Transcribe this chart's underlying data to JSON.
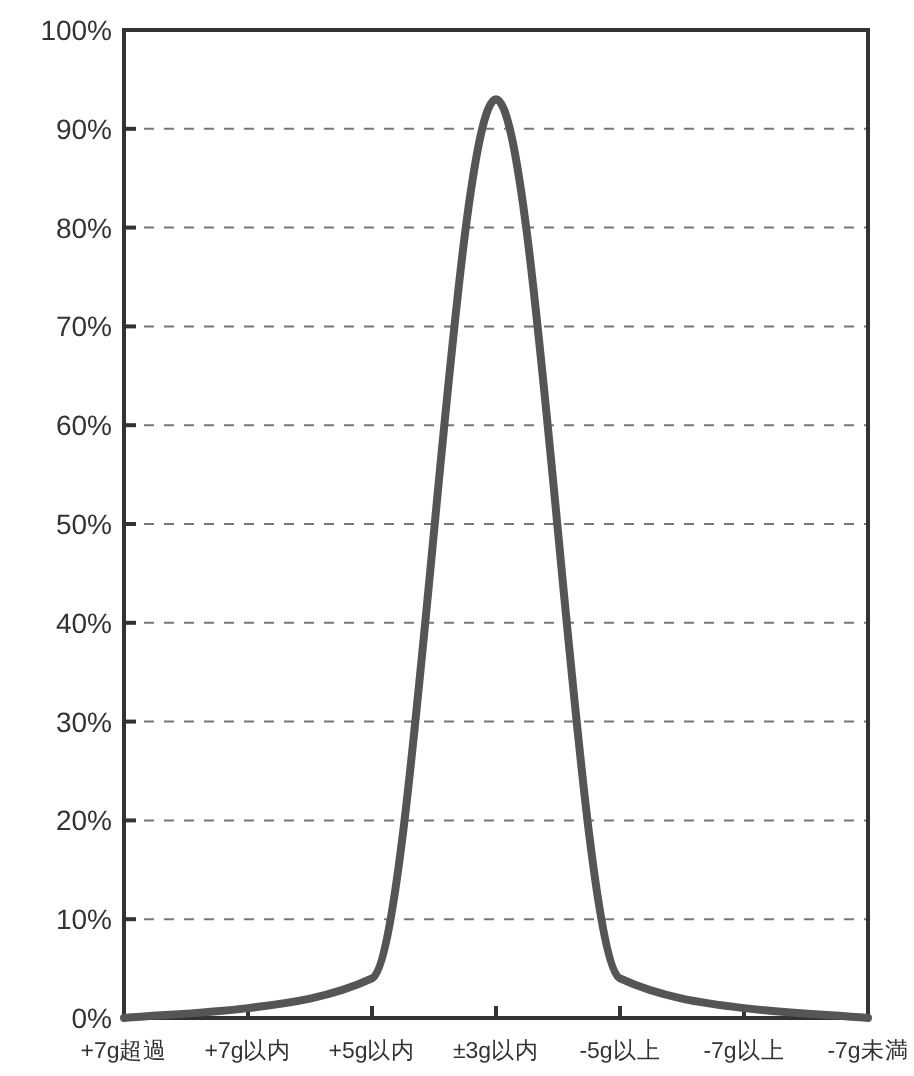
{
  "chart_data": {
    "type": "line",
    "categories": [
      "+7g超過",
      "+7g以内",
      "+5g以内",
      "±3g以内",
      "-5g以上",
      "-7g以上",
      "-7g未満"
    ],
    "values": [
      0,
      1,
      4,
      93,
      4,
      1,
      0
    ],
    "color": "#555555",
    "ylim": [
      0,
      100
    ],
    "yticks": [
      {
        "value": 0,
        "label": "0%"
      },
      {
        "value": 10,
        "label": "10%"
      },
      {
        "value": 20,
        "label": "20%"
      },
      {
        "value": 30,
        "label": "30%"
      },
      {
        "value": 40,
        "label": "40%"
      },
      {
        "value": 50,
        "label": "50%"
      },
      {
        "value": 60,
        "label": "60%"
      },
      {
        "value": 70,
        "label": "70%"
      },
      {
        "value": 80,
        "label": "80%"
      },
      {
        "value": 90,
        "label": "90%"
      },
      {
        "value": 100,
        "label": "100%"
      }
    ],
    "grid": "y",
    "marker": "none",
    "line_style": "solid"
  }
}
